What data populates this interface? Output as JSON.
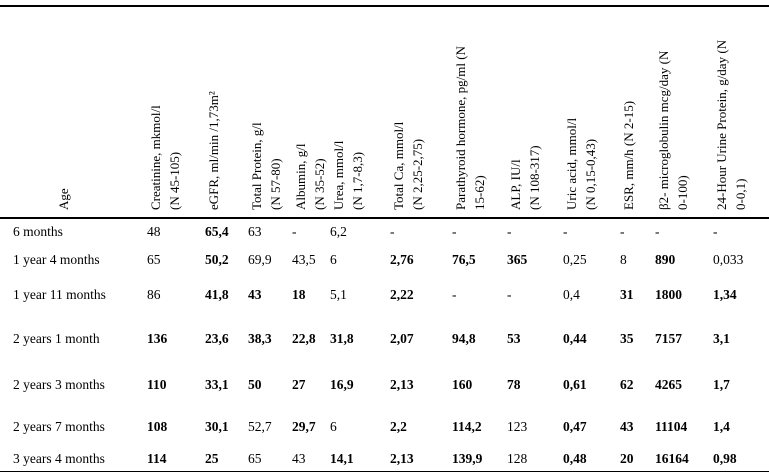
{
  "page": {
    "background_color": "#ffffff",
    "text_color": "#000000"
  },
  "table": {
    "columns": [
      {
        "id": "age",
        "label": "Age"
      },
      {
        "id": "creatinine",
        "label": "Creatinine, mkmol/l\n(N 45-105)"
      },
      {
        "id": "egfr",
        "label": "eGFR, ml/min /1,73m²"
      },
      {
        "id": "total-protein",
        "label": "Total Protein, g/l\n(N 57-80)"
      },
      {
        "id": "albumin",
        "label": "Albumin, g/l\n(N 35-52)"
      },
      {
        "id": "urea",
        "label": "Urea, mmol/l\n(N 1,7-8,3)"
      },
      {
        "id": "total-ca",
        "label": "Total Ca, mmol/l\n(N 2,25-2,75)"
      },
      {
        "id": "parathyroid-hormone",
        "label": "Parathyroid hormone, pg/ml (N\n15-62)"
      },
      {
        "id": "alp",
        "label": "ALP, IU/l\n(N 108-317)"
      },
      {
        "id": "uric-acid",
        "label": "Uric acid, mmol/l\n(N 0,15-0,43)"
      },
      {
        "id": "esr",
        "label": "ESR, mm/h (N 2-15)"
      },
      {
        "id": "b2-microglobulin",
        "label": "β2- microglobulin mcg/day (N\n0-100)"
      },
      {
        "id": "urine-protein-24h",
        "label": "24-Hour Urine Protein, g/day (N\n0-0,1)"
      }
    ],
    "rows": [
      {
        "age": "6 months",
        "cells": [
          {
            "t": "48",
            "b": false
          },
          {
            "t": "65,4",
            "b": true
          },
          {
            "t": "63",
            "b": false
          },
          {
            "t": "-",
            "b": false
          },
          {
            "t": "6,2",
            "b": false
          },
          {
            "t": "-",
            "b": false
          },
          {
            "t": "-",
            "b": false
          },
          {
            "t": "-",
            "b": false
          },
          {
            "t": "-",
            "b": false
          },
          {
            "t": "-",
            "b": false
          },
          {
            "t": "-",
            "b": false
          },
          {
            "t": "-",
            "b": false
          }
        ]
      },
      {
        "age": "1 year 4 months",
        "cells": [
          {
            "t": "65",
            "b": false
          },
          {
            "t": "50,2",
            "b": true
          },
          {
            "t": "69,9",
            "b": false
          },
          {
            "t": "43,5",
            "b": false
          },
          {
            "t": "6",
            "b": false
          },
          {
            "t": "2,76",
            "b": true
          },
          {
            "t": "76,5",
            "b": true
          },
          {
            "t": "365",
            "b": true
          },
          {
            "t": "0,25",
            "b": false
          },
          {
            "t": "8",
            "b": false
          },
          {
            "t": "890",
            "b": true
          },
          {
            "t": "0,033",
            "b": false
          }
        ]
      },
      {
        "age": "1 year 11 months",
        "cells": [
          {
            "t": "86",
            "b": false
          },
          {
            "t": "41,8",
            "b": true
          },
          {
            "t": "43",
            "b": true
          },
          {
            "t": "18",
            "b": true
          },
          {
            "t": "5,1",
            "b": false
          },
          {
            "t": "2,22",
            "b": true
          },
          {
            "t": "-",
            "b": false
          },
          {
            "t": "-",
            "b": false
          },
          {
            "t": "0,4",
            "b": false
          },
          {
            "t": "31",
            "b": true
          },
          {
            "t": "1800",
            "b": true
          },
          {
            "t": "1,34",
            "b": true
          }
        ]
      },
      {
        "age": "2 years 1 month",
        "cells": [
          {
            "t": "136",
            "b": true
          },
          {
            "t": "23,6",
            "b": true
          },
          {
            "t": "38,3",
            "b": true
          },
          {
            "t": "22,8",
            "b": true
          },
          {
            "t": "31,8",
            "b": true
          },
          {
            "t": "2,07",
            "b": true
          },
          {
            "t": "94,8",
            "b": true
          },
          {
            "t": "53",
            "b": true
          },
          {
            "t": "0,44",
            "b": true
          },
          {
            "t": "35",
            "b": true
          },
          {
            "t": "7157",
            "b": true
          },
          {
            "t": "3,1",
            "b": true
          }
        ]
      },
      {
        "age": "2 years 3 months",
        "cells": [
          {
            "t": "110",
            "b": true
          },
          {
            "t": "33,1",
            "b": true
          },
          {
            "t": "50",
            "b": true
          },
          {
            "t": "27",
            "b": true
          },
          {
            "t": "16,9",
            "b": true
          },
          {
            "t": "2,13",
            "b": true
          },
          {
            "t": "160",
            "b": true
          },
          {
            "t": "78",
            "b": true
          },
          {
            "t": "0,61",
            "b": true
          },
          {
            "t": "62",
            "b": true
          },
          {
            "t": "4265",
            "b": true
          },
          {
            "t": "1,7",
            "b": true
          }
        ]
      },
      {
        "age": "2 years 7 months",
        "cells": [
          {
            "t": "108",
            "b": true
          },
          {
            "t": "30,1",
            "b": true
          },
          {
            "t": "52,7",
            "b": false
          },
          {
            "t": "29,7",
            "b": true
          },
          {
            "t": "6",
            "b": false
          },
          {
            "t": "2,2",
            "b": true
          },
          {
            "t": "114,2",
            "b": true
          },
          {
            "t": "123",
            "b": false
          },
          {
            "t": "0,47",
            "b": true
          },
          {
            "t": "43",
            "b": true
          },
          {
            "t": "11104",
            "b": true
          },
          {
            "t": "1,4",
            "b": true
          }
        ]
      },
      {
        "age": "3 years 4 months",
        "cells": [
          {
            "t": "114",
            "b": true
          },
          {
            "t": "25",
            "b": true
          },
          {
            "t": "65",
            "b": false
          },
          {
            "t": "43",
            "b": false
          },
          {
            "t": "14,1",
            "b": true
          },
          {
            "t": "2,13",
            "b": true
          },
          {
            "t": "139,9",
            "b": true
          },
          {
            "t": "128",
            "b": false
          },
          {
            "t": "0,48",
            "b": true
          },
          {
            "t": "20",
            "b": true
          },
          {
            "t": "16164",
            "b": true
          },
          {
            "t": "0,98",
            "b": true
          }
        ]
      }
    ]
  }
}
